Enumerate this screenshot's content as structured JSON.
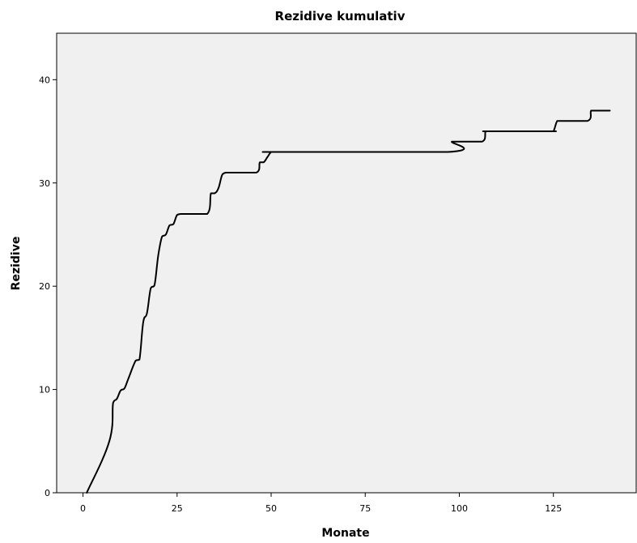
{
  "chart_data": {
    "type": "line",
    "title": "Rezidive kumulativ",
    "xlabel": "Monate",
    "ylabel": "Rezidive",
    "xlim": [
      -7,
      147
    ],
    "ylim": [
      0,
      44.5
    ],
    "x_ticks": [
      "0",
      "25",
      "50",
      "75",
      "100",
      "125"
    ],
    "y_ticks": [
      "0",
      "10",
      "20",
      "30",
      "40"
    ],
    "grid": false,
    "legend": "none",
    "colors": {
      "plot_background": "#f0f0f0",
      "line": "#000000",
      "axis": "#000000"
    },
    "series": [
      {
        "x": [
          1,
          7,
          8,
          9,
          10,
          11,
          12,
          14,
          15,
          16,
          17,
          18,
          19,
          20,
          21,
          22,
          23,
          24,
          25,
          26,
          27,
          28,
          33,
          34,
          35,
          36,
          37,
          38,
          39,
          40,
          46,
          47,
          48,
          49,
          50,
          51,
          52,
          97,
          98,
          99,
          100,
          106,
          107,
          108,
          124,
          125,
          126,
          127,
          134,
          135,
          136,
          140
        ],
        "y": [
          0,
          5,
          8.7,
          9.1,
          9.9,
          10.1,
          11,
          12.8,
          12.9,
          16.5,
          17.4,
          19.8,
          20.1,
          23,
          24.8,
          25,
          25.9,
          26,
          26.9,
          27,
          27,
          27,
          27,
          29,
          29,
          29.5,
          30.8,
          31,
          31,
          31,
          31,
          32,
          32,
          32.5,
          33,
          33,
          33,
          33,
          34,
          34,
          34,
          34,
          35,
          35,
          35,
          35,
          36,
          36,
          36,
          37,
          37,
          37
        ]
      }
    ]
  }
}
